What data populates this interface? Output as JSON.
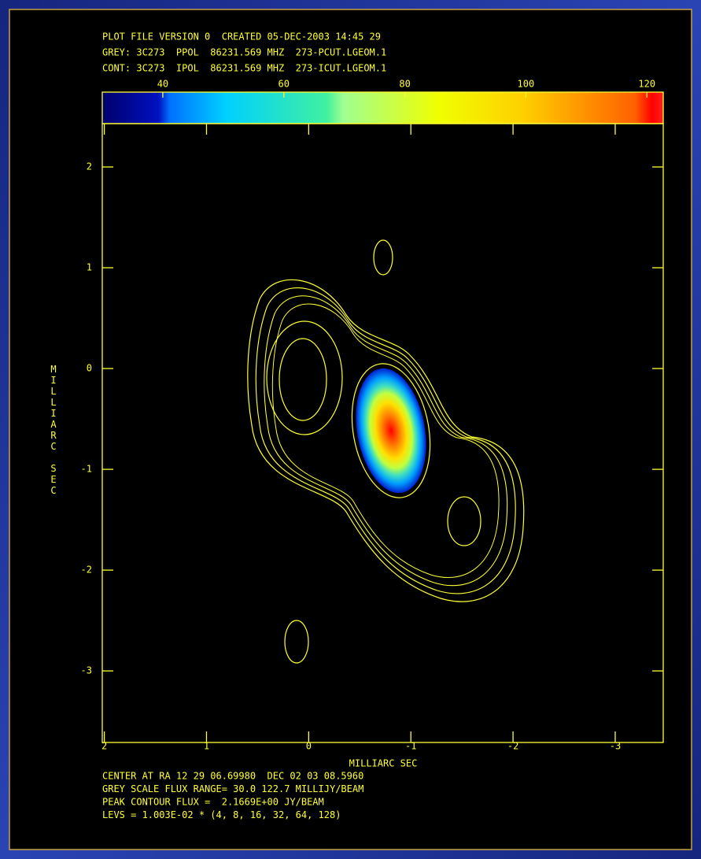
{
  "chart_data": {
    "type": "contour",
    "header": [
      "PLOT FILE VERSION 0  CREATED 05-DEC-2003 14:45 29",
      "GREY: 3C273  PPOL  86231.569 MHZ  273-PCUT.LGEOM.1",
      "CONT: 3C273  IPOL  86231.569 MHZ  273-ICUT.LGEOM.1"
    ],
    "xlabel": "MILLIARC SEC",
    "ylabel": "MILLIARC SEC",
    "xlim": [
      2.02,
      -3.47
    ],
    "xticks": [
      2,
      1,
      0,
      -1,
      -2,
      -3
    ],
    "ylim": [
      -3.71,
      2.43
    ],
    "yticks": [
      2,
      1,
      0,
      -1,
      -2,
      -3
    ],
    "colorbar": {
      "clim": [
        30.0,
        122.7
      ],
      "ticks": [
        40,
        60,
        80,
        100,
        120
      ]
    },
    "footer": [
      "CENTER AT RA 12 29 06.69980  DEC 02 03 08.5960",
      "GREY SCALE FLUX RANGE= 30.0 122.7 MILLIJY/BEAM",
      "PEAK CONTOUR FLUX =  2.1669E+00 JY/BEAM",
      "LEVS = 1.003E-02 * (4, 8, 16, 32, 64, 128)"
    ]
  }
}
